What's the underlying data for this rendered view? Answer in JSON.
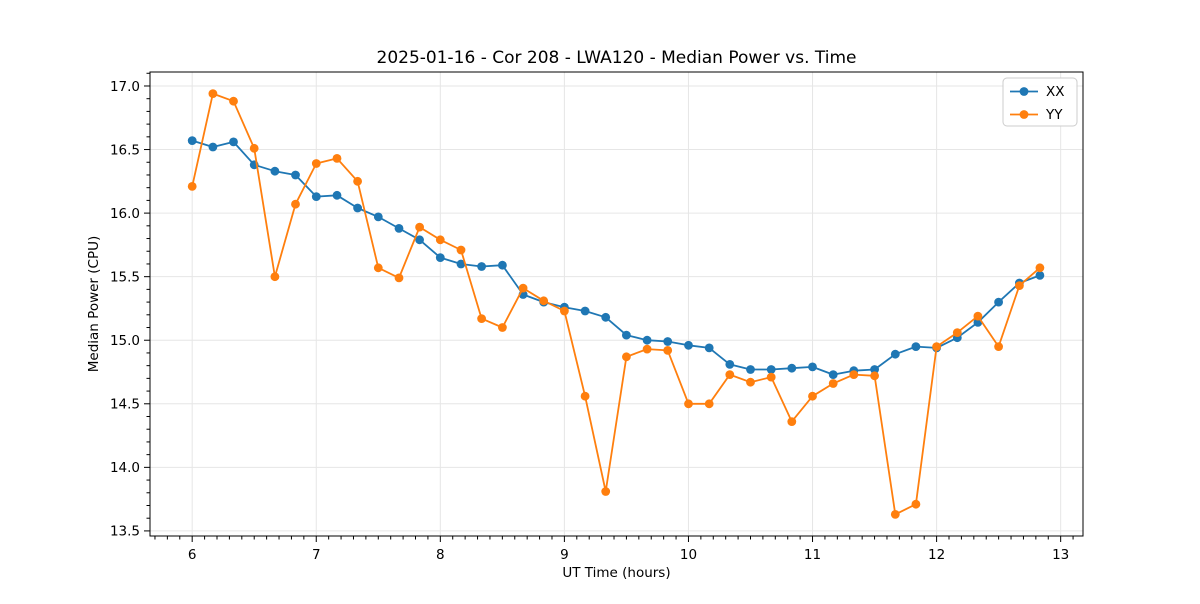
{
  "figure": {
    "background": "#ffffff",
    "frame_color": "#000000",
    "grid_color": "#e6e6e6",
    "text_color": "#000000"
  },
  "chart_data": {
    "type": "line",
    "title": "2025-01-16 - Cor 208 - LWA120 - Median Power vs. Time",
    "xlabel": "UT Time (hours)",
    "ylabel": "Median Power (CPU)",
    "xlim": [
      5.66,
      13.18
    ],
    "ylim": [
      13.46,
      17.11
    ],
    "xticks": [
      6,
      7,
      8,
      9,
      10,
      11,
      12,
      13
    ],
    "yticks": [
      13.5,
      14.0,
      14.5,
      15.0,
      15.5,
      16.0,
      16.5,
      17.0
    ],
    "minor_tick_step": 0.1,
    "grid": true,
    "legend_position": "upper right",
    "x": [
      6.0,
      6.167,
      6.333,
      6.5,
      6.667,
      6.833,
      7.0,
      7.167,
      7.333,
      7.5,
      7.667,
      7.833,
      8.0,
      8.167,
      8.333,
      8.5,
      8.667,
      8.833,
      9.0,
      9.167,
      9.333,
      9.5,
      9.667,
      9.833,
      10.0,
      10.167,
      10.333,
      10.5,
      10.667,
      10.833,
      11.0,
      11.167,
      11.333,
      11.5,
      11.667,
      11.833,
      12.0,
      12.167,
      12.333,
      12.5,
      12.667,
      12.833
    ],
    "series": [
      {
        "name": "XX",
        "color": "#1f77b4",
        "values": [
          16.57,
          16.52,
          16.56,
          16.38,
          16.33,
          16.3,
          16.13,
          16.14,
          16.04,
          15.97,
          15.88,
          15.79,
          15.65,
          15.6,
          15.58,
          15.59,
          15.36,
          15.3,
          15.26,
          15.23,
          15.18,
          15.04,
          15.0,
          14.99,
          14.96,
          14.94,
          14.81,
          14.77,
          14.77,
          14.78,
          14.79,
          14.73,
          14.76,
          14.77,
          14.89,
          14.95,
          14.94,
          15.02,
          15.14,
          15.3,
          15.45,
          15.51
        ]
      },
      {
        "name": "YY",
        "color": "#ff7f0e",
        "values": [
          16.21,
          16.94,
          16.88,
          16.51,
          15.5,
          16.07,
          16.39,
          16.43,
          16.25,
          15.57,
          15.49,
          15.89,
          15.79,
          15.71,
          15.17,
          15.1,
          15.41,
          15.31,
          15.23,
          14.56,
          13.81,
          14.87,
          14.93,
          14.92,
          14.5,
          14.5,
          14.73,
          14.67,
          14.71,
          14.36,
          14.56,
          14.66,
          14.73,
          14.72,
          13.63,
          13.71,
          14.95,
          15.06,
          15.19,
          14.95,
          15.43,
          15.57
        ]
      }
    ]
  }
}
